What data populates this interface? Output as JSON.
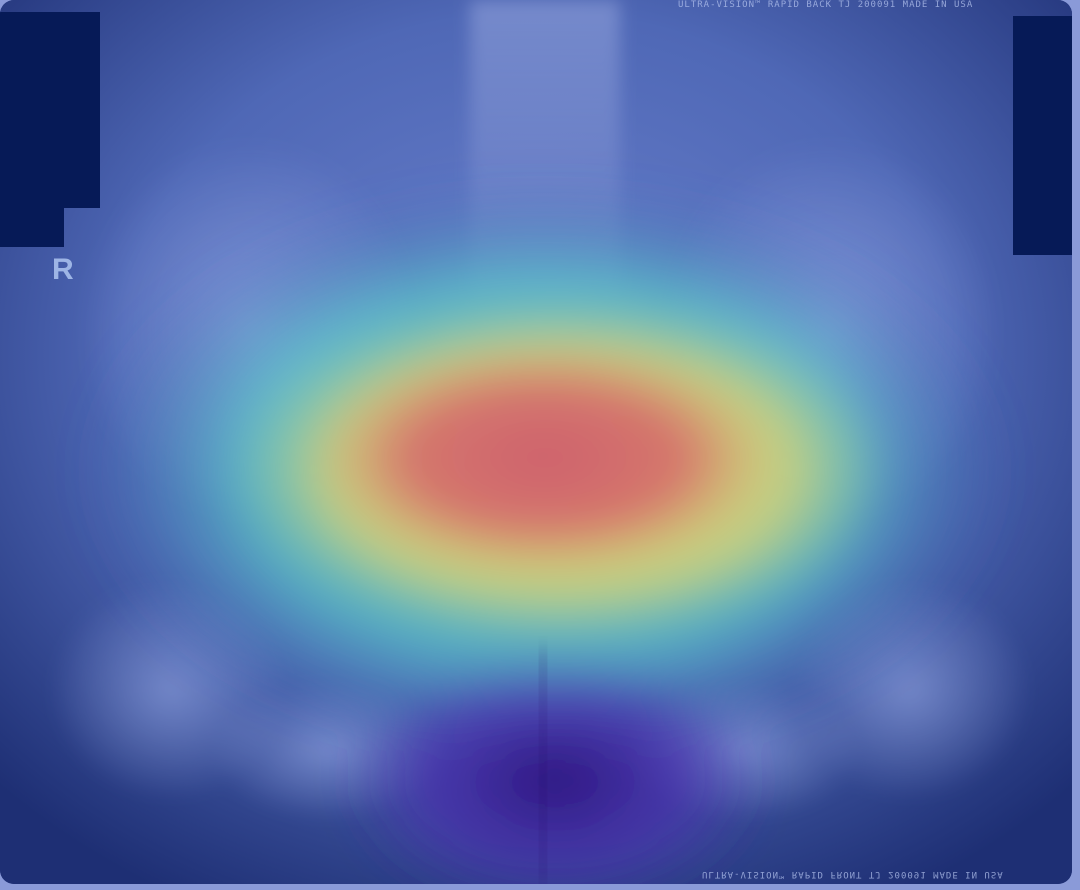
{
  "image": {
    "kind": "pelvic-xray-with-heatmap-overlay",
    "side_marker": "R",
    "film_print_top": "ULTRA-VISION™ RAPID BACK TJ 200091 MADE IN USA",
    "film_print_bottom": "ULTRA-VISION™ RAPID FRONT TJ 200091 MADE IN USA",
    "colors": {
      "film_base": "#24357d",
      "redaction": "#061a57",
      "heat_hot": "#d6676a",
      "heat_warm": "#e5d66c",
      "heat_mid": "#56cfc9",
      "heat_cool": "#3d5fae",
      "lower_shadow": "#3f1fa0"
    }
  }
}
